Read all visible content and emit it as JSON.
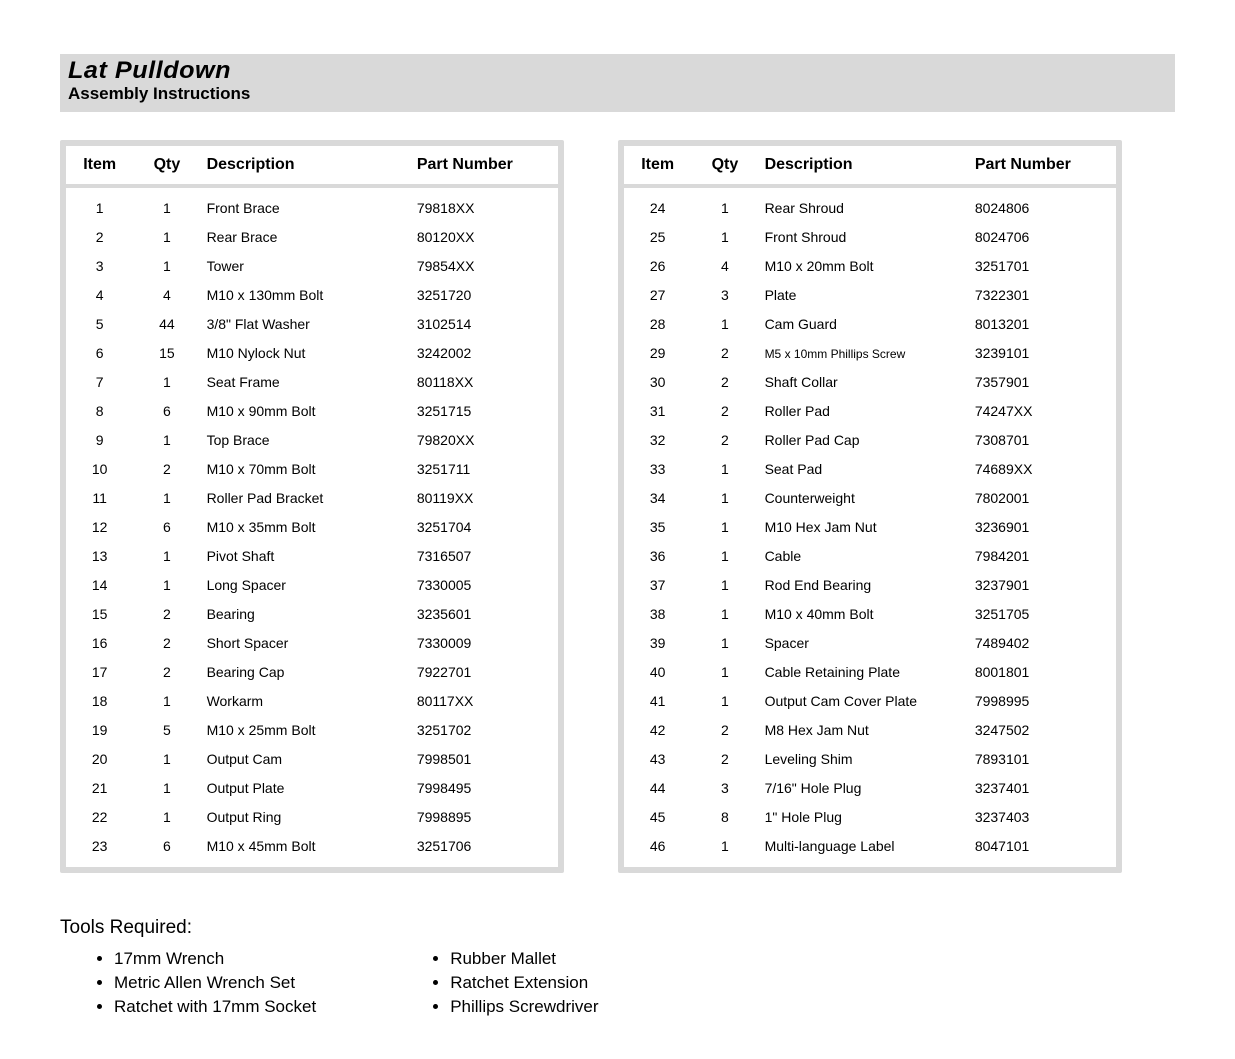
{
  "header": {
    "title": "Lat Pulldown",
    "subtitle": "Assembly Instructions"
  },
  "parts_columns": {
    "item": "Item",
    "qty": "Qty",
    "description": "Description",
    "part_number": "Part Number"
  },
  "parts_left": [
    {
      "item": "1",
      "qty": "1",
      "desc": "Front Brace",
      "pn": "79818XX"
    },
    {
      "item": "2",
      "qty": "1",
      "desc": "Rear Brace",
      "pn": "80120XX"
    },
    {
      "item": "3",
      "qty": "1",
      "desc": "Tower",
      "pn": "79854XX"
    },
    {
      "item": "4",
      "qty": "4",
      "desc": "M10 x 130mm Bolt",
      "pn": "3251720"
    },
    {
      "item": "5",
      "qty": "44",
      "desc": "3/8\" Flat Washer",
      "pn": "3102514"
    },
    {
      "item": "6",
      "qty": "15",
      "desc": "M10 Nylock Nut",
      "pn": "3242002"
    },
    {
      "item": "7",
      "qty": "1",
      "desc": "Seat Frame",
      "pn": "80118XX"
    },
    {
      "item": "8",
      "qty": "6",
      "desc": "M10 x 90mm Bolt",
      "pn": "3251715"
    },
    {
      "item": "9",
      "qty": "1",
      "desc": "Top Brace",
      "pn": "79820XX"
    },
    {
      "item": "10",
      "qty": "2",
      "desc": "M10 x 70mm Bolt",
      "pn": "3251711"
    },
    {
      "item": "11",
      "qty": "1",
      "desc": "Roller Pad Bracket",
      "pn": "80119XX"
    },
    {
      "item": "12",
      "qty": "6",
      "desc": "M10 x 35mm Bolt",
      "pn": "3251704"
    },
    {
      "item": "13",
      "qty": "1",
      "desc": "Pivot Shaft",
      "pn": "7316507"
    },
    {
      "item": "14",
      "qty": "1",
      "desc": "Long Spacer",
      "pn": "7330005"
    },
    {
      "item": "15",
      "qty": "2",
      "desc": "Bearing",
      "pn": "3235601"
    },
    {
      "item": "16",
      "qty": "2",
      "desc": "Short Spacer",
      "pn": "7330009"
    },
    {
      "item": "17",
      "qty": "2",
      "desc": "Bearing Cap",
      "pn": "7922701"
    },
    {
      "item": "18",
      "qty": "1",
      "desc": "Workarm",
      "pn": "80117XX"
    },
    {
      "item": "19",
      "qty": "5",
      "desc": "M10 x 25mm Bolt",
      "pn": "3251702"
    },
    {
      "item": "20",
      "qty": "1",
      "desc": "Output Cam",
      "pn": "7998501"
    },
    {
      "item": "21",
      "qty": "1",
      "desc": "Output Plate",
      "pn": "7998495"
    },
    {
      "item": "22",
      "qty": "1",
      "desc": "Output Ring",
      "pn": "7998895"
    },
    {
      "item": "23",
      "qty": "6",
      "desc": "M10 x 45mm Bolt",
      "pn": "3251706"
    }
  ],
  "parts_right": [
    {
      "item": "24",
      "qty": "1",
      "desc": "Rear Shroud",
      "pn": "8024806"
    },
    {
      "item": "25",
      "qty": "1",
      "desc": "Front Shroud",
      "pn": "8024706"
    },
    {
      "item": "26",
      "qty": "4",
      "desc": "M10 x 20mm Bolt",
      "pn": "3251701"
    },
    {
      "item": "27",
      "qty": "3",
      "desc": "Plate",
      "pn": "7322301"
    },
    {
      "item": "28",
      "qty": "1",
      "desc": "Cam Guard",
      "pn": "8013201"
    },
    {
      "item": "29",
      "qty": "2",
      "desc": "M5 x 10mm Phillips Screw",
      "pn": "3239101",
      "small": true
    },
    {
      "item": "30",
      "qty": "2",
      "desc": "Shaft Collar",
      "pn": "7357901"
    },
    {
      "item": "31",
      "qty": "2",
      "desc": "Roller Pad",
      "pn": "74247XX"
    },
    {
      "item": "32",
      "qty": "2",
      "desc": "Roller Pad Cap",
      "pn": "7308701"
    },
    {
      "item": "33",
      "qty": "1",
      "desc": "Seat Pad",
      "pn": "74689XX"
    },
    {
      "item": "34",
      "qty": "1",
      "desc": "Counterweight",
      "pn": "7802001"
    },
    {
      "item": "35",
      "qty": "1",
      "desc": "M10 Hex Jam Nut",
      "pn": "3236901"
    },
    {
      "item": "36",
      "qty": "1",
      "desc": "Cable",
      "pn": "7984201"
    },
    {
      "item": "37",
      "qty": "1",
      "desc": "Rod End Bearing",
      "pn": "3237901"
    },
    {
      "item": "38",
      "qty": "1",
      "desc": "M10 x 40mm Bolt",
      "pn": "3251705"
    },
    {
      "item": "39",
      "qty": "1",
      "desc": "Spacer",
      "pn": "7489402"
    },
    {
      "item": "40",
      "qty": "1",
      "desc": "Cable Retaining Plate",
      "pn": "8001801"
    },
    {
      "item": "41",
      "qty": "1",
      "desc": "Output Cam Cover Plate",
      "pn": "7998995"
    },
    {
      "item": "42",
      "qty": "2",
      "desc": "M8 Hex Jam Nut",
      "pn": "3247502"
    },
    {
      "item": "43",
      "qty": "2",
      "desc": "Leveling Shim",
      "pn": "7893101"
    },
    {
      "item": "44",
      "qty": "3",
      "desc": "7/16\" Hole Plug",
      "pn": "3237401"
    },
    {
      "item": "45",
      "qty": "8",
      "desc": "1\" Hole Plug",
      "pn": "3237403"
    },
    {
      "item": "46",
      "qty": "1",
      "desc": "Multi-language Label",
      "pn": "8047101"
    }
  ],
  "tools": {
    "heading": "Tools Required:",
    "col1": [
      "17mm Wrench",
      "Metric Allen Wrench Set",
      "Ratchet with 17mm Socket"
    ],
    "col2": [
      "Rubber Mallet",
      "Ratchet Extension",
      "Phillips Screwdriver"
    ]
  },
  "style": {
    "header_bg": "#d9d9d9",
    "table_border": "#d9d9d9",
    "text_color": "#000000",
    "page_bg": "#ffffff",
    "title_fontsize": 24,
    "subtitle_fontsize": 17,
    "th_fontsize": 16,
    "td_fontsize": 14,
    "tools_heading_fontsize": 19,
    "tools_item_fontsize": 17
  }
}
